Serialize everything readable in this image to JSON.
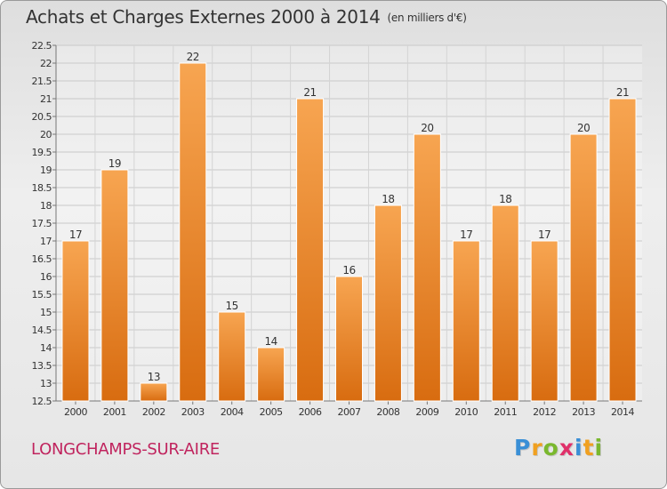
{
  "title": "Achats et Charges Externes 2000 à 2014",
  "unit": "(en milliers d'€)",
  "commune": "LONGCHAMPS-SUR-AIRE",
  "logo": {
    "letters": [
      {
        "char": "P",
        "color": "#3a8fd6"
      },
      {
        "char": "r",
        "color": "#f0a020"
      },
      {
        "char": "o",
        "color": "#7ab82e"
      },
      {
        "char": "x",
        "color": "#e0306a"
      },
      {
        "char": "i",
        "color": "#3a8fd6"
      },
      {
        "char": "t",
        "color": "#f0a020"
      },
      {
        "char": "i",
        "color": "#7ab82e"
      }
    ]
  },
  "chart_data": {
    "type": "bar",
    "title": "Achats et Charges Externes 2000 à 2014",
    "categories": [
      "2000",
      "2001",
      "2002",
      "2003",
      "2004",
      "2005",
      "2006",
      "2007",
      "2008",
      "2009",
      "2010",
      "2011",
      "2012",
      "2013",
      "2014"
    ],
    "values": [
      17,
      19,
      13,
      22,
      15,
      14,
      21,
      16,
      18,
      20,
      17,
      18,
      17,
      20,
      21
    ],
    "data_labels": [
      "17",
      "19",
      "13",
      "22",
      "15",
      "14",
      "21",
      "16",
      "18",
      "20",
      "17",
      "18",
      "17",
      "20",
      "21"
    ],
    "ylim": [
      12.5,
      22.5
    ],
    "yticks": [
      12.5,
      13,
      13.5,
      14,
      14.5,
      15,
      15.5,
      16,
      16.5,
      17,
      17.5,
      18,
      18.5,
      19,
      19.5,
      20,
      20.5,
      21,
      21.5,
      22,
      22.5
    ],
    "ytick_labels": [
      "12.5",
      "13",
      "13.5",
      "14",
      "14.5",
      "15",
      "15.5",
      "16",
      "16.5",
      "17",
      "17.5",
      "18",
      "18.5",
      "19",
      "19.5",
      "20",
      "20.5",
      "21",
      "21.5",
      "22",
      "22.5"
    ],
    "grid": true,
    "bar_color": "#f08a2a",
    "xlabel": "",
    "ylabel": ""
  }
}
